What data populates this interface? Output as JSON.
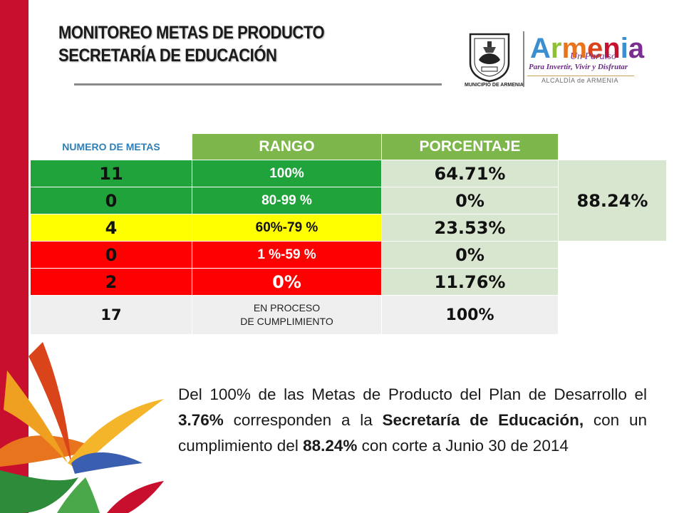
{
  "header": {
    "title_line1": "MONITOREO METAS DE PRODUCTO",
    "title_line2": "SECRETARÍA DE EDUCACIÓN"
  },
  "logos": {
    "crest_caption": "MUNICIPIO DE ARMENIA",
    "brand_name": "Armenia",
    "brand_subtitle": "Un Paraíso",
    "brand_tagline": "Para Invertir, Vivir y Disfrutar",
    "brand_office": "ALCALDÍA de ARMENIA"
  },
  "table": {
    "headers": [
      "NUMERO DE METAS",
      "RANGO",
      "PORCENTAJE"
    ],
    "rows": [
      {
        "count": "11",
        "range": "100%",
        "percent": "64.71%"
      },
      {
        "count": "0",
        "range": "80-99  %",
        "percent": "0%"
      },
      {
        "count": "4",
        "range": "60%-79 %",
        "percent": "23.53%"
      },
      {
        "count": "0",
        "range": "1  %-59 %",
        "percent": "0%"
      },
      {
        "count": "2",
        "range": "0%",
        "percent": "11.76%"
      },
      {
        "count": "17",
        "range_line1": "EN PROCESO",
        "range_line2": "DE  CUMPLIMIENTO",
        "percent": "100%"
      }
    ],
    "total_compliance": "88.24%"
  },
  "summary": {
    "t1": "Del 100% de las Metas de Producto del Plan de Desarrollo el ",
    "b1": "3.76%",
    "t2": " corresponden a la ",
    "b2": "Secretaría de Educación,",
    "t3": " con un cumplimiento del  ",
    "b3": "88.24%",
    "t4": " con corte a Junio 30 de 2014"
  },
  "colors": {
    "accent_red": "#c8102e",
    "header_green": "#7db64a",
    "status_green": "#1fa33a",
    "status_yellow": "#ffff00",
    "status_red": "#ff0000"
  }
}
